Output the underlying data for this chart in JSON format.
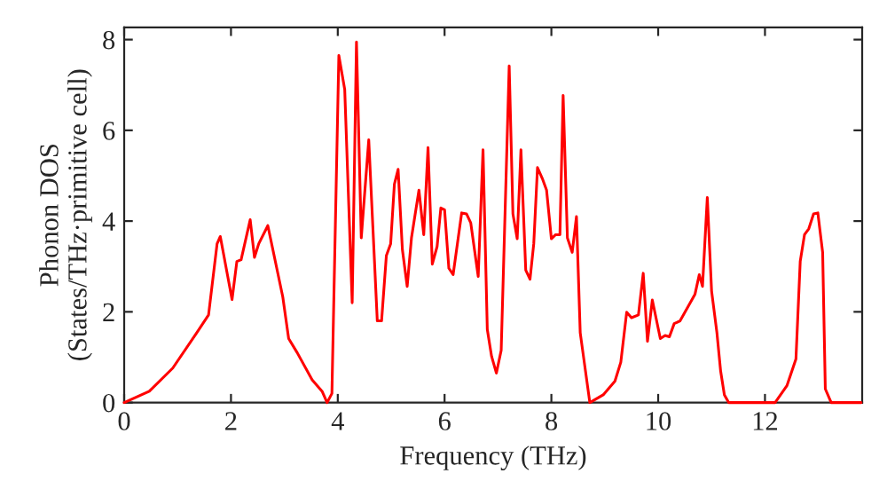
{
  "chart_data": {
    "type": "line",
    "xlabel": "Frequency (THz)",
    "ylabel": "Phonon DOS\n(States/THz·primitive cell)",
    "xlim": [
      0,
      13.82
    ],
    "ylim": [
      0,
      8.27
    ],
    "xticks": [
      0,
      2,
      4,
      6,
      8,
      10,
      12
    ],
    "yticks": [
      0,
      2,
      4,
      6,
      8
    ],
    "grid": false,
    "legend": false,
    "line_style": "solid",
    "marker": "none",
    "series": [
      {
        "color": "#ff0000",
        "x": [
          0,
          0.47,
          0.91,
          1.36,
          1.58,
          1.74,
          1.8,
          2.02,
          2.11,
          2.19,
          2.36,
          2.44,
          2.52,
          2.69,
          2.97,
          3.08,
          3.24,
          3.52,
          3.71,
          3.8,
          3.89,
          3.93,
          4.02,
          4.13,
          4.27,
          4.35,
          4.44,
          4.58,
          4.74,
          4.82,
          4.91,
          4.99,
          5.06,
          5.13,
          5.21,
          5.3,
          5.38,
          5.52,
          5.61,
          5.69,
          5.77,
          5.86,
          5.93,
          6.0,
          6.08,
          6.16,
          6.32,
          6.41,
          6.49,
          6.63,
          6.72,
          6.8,
          6.88,
          6.97,
          7.06,
          7.21,
          7.28,
          7.36,
          7.43,
          7.52,
          7.6,
          7.67,
          7.74,
          7.83,
          7.91,
          8.0,
          8.08,
          8.16,
          8.22,
          8.3,
          8.39,
          8.47,
          8.54,
          8.72,
          8.97,
          9.19,
          9.3,
          9.41,
          9.5,
          9.63,
          9.72,
          9.8,
          9.89,
          10.04,
          10.13,
          10.21,
          10.3,
          10.41,
          10.69,
          10.77,
          10.83,
          10.92,
          11.0,
          11.1,
          11.17,
          11.24,
          11.32,
          12.19,
          12.41,
          12.58,
          12.66,
          12.74,
          12.82,
          12.91,
          12.99,
          13.08,
          13.13,
          13.24,
          13.8
        ],
        "values": [
          0,
          0.25,
          0.76,
          1.54,
          1.93,
          3.5,
          3.66,
          2.27,
          3.11,
          3.15,
          4.03,
          3.2,
          3.5,
          3.9,
          2.33,
          1.41,
          1.1,
          0.5,
          0.24,
          0,
          0.2,
          2.5,
          7.65,
          6.9,
          2.2,
          7.95,
          3.63,
          5.79,
          1.8,
          1.8,
          3.24,
          3.5,
          4.81,
          5.14,
          3.37,
          2.56,
          3.63,
          4.68,
          3.7,
          5.62,
          3.05,
          3.44,
          4.29,
          4.25,
          2.96,
          2.82,
          4.18,
          4.16,
          3.96,
          2.78,
          5.57,
          1.61,
          1.02,
          0.65,
          1.15,
          7.42,
          4.16,
          3.61,
          5.57,
          2.92,
          2.72,
          3.5,
          5.18,
          4.94,
          4.68,
          3.61,
          3.7,
          3.7,
          6.77,
          3.63,
          3.31,
          4.1,
          1.54,
          0,
          0.17,
          0.47,
          0.89,
          1.99,
          1.87,
          1.93,
          2.85,
          1.35,
          2.26,
          1.41,
          1.48,
          1.45,
          1.74,
          1.8,
          2.39,
          2.82,
          2.56,
          4.52,
          2.46,
          1.54,
          0.69,
          0.17,
          0,
          0,
          0.37,
          0.96,
          3.11,
          3.7,
          3.83,
          4.16,
          4.18,
          3.31,
          0.3,
          0,
          0
        ]
      }
    ]
  }
}
